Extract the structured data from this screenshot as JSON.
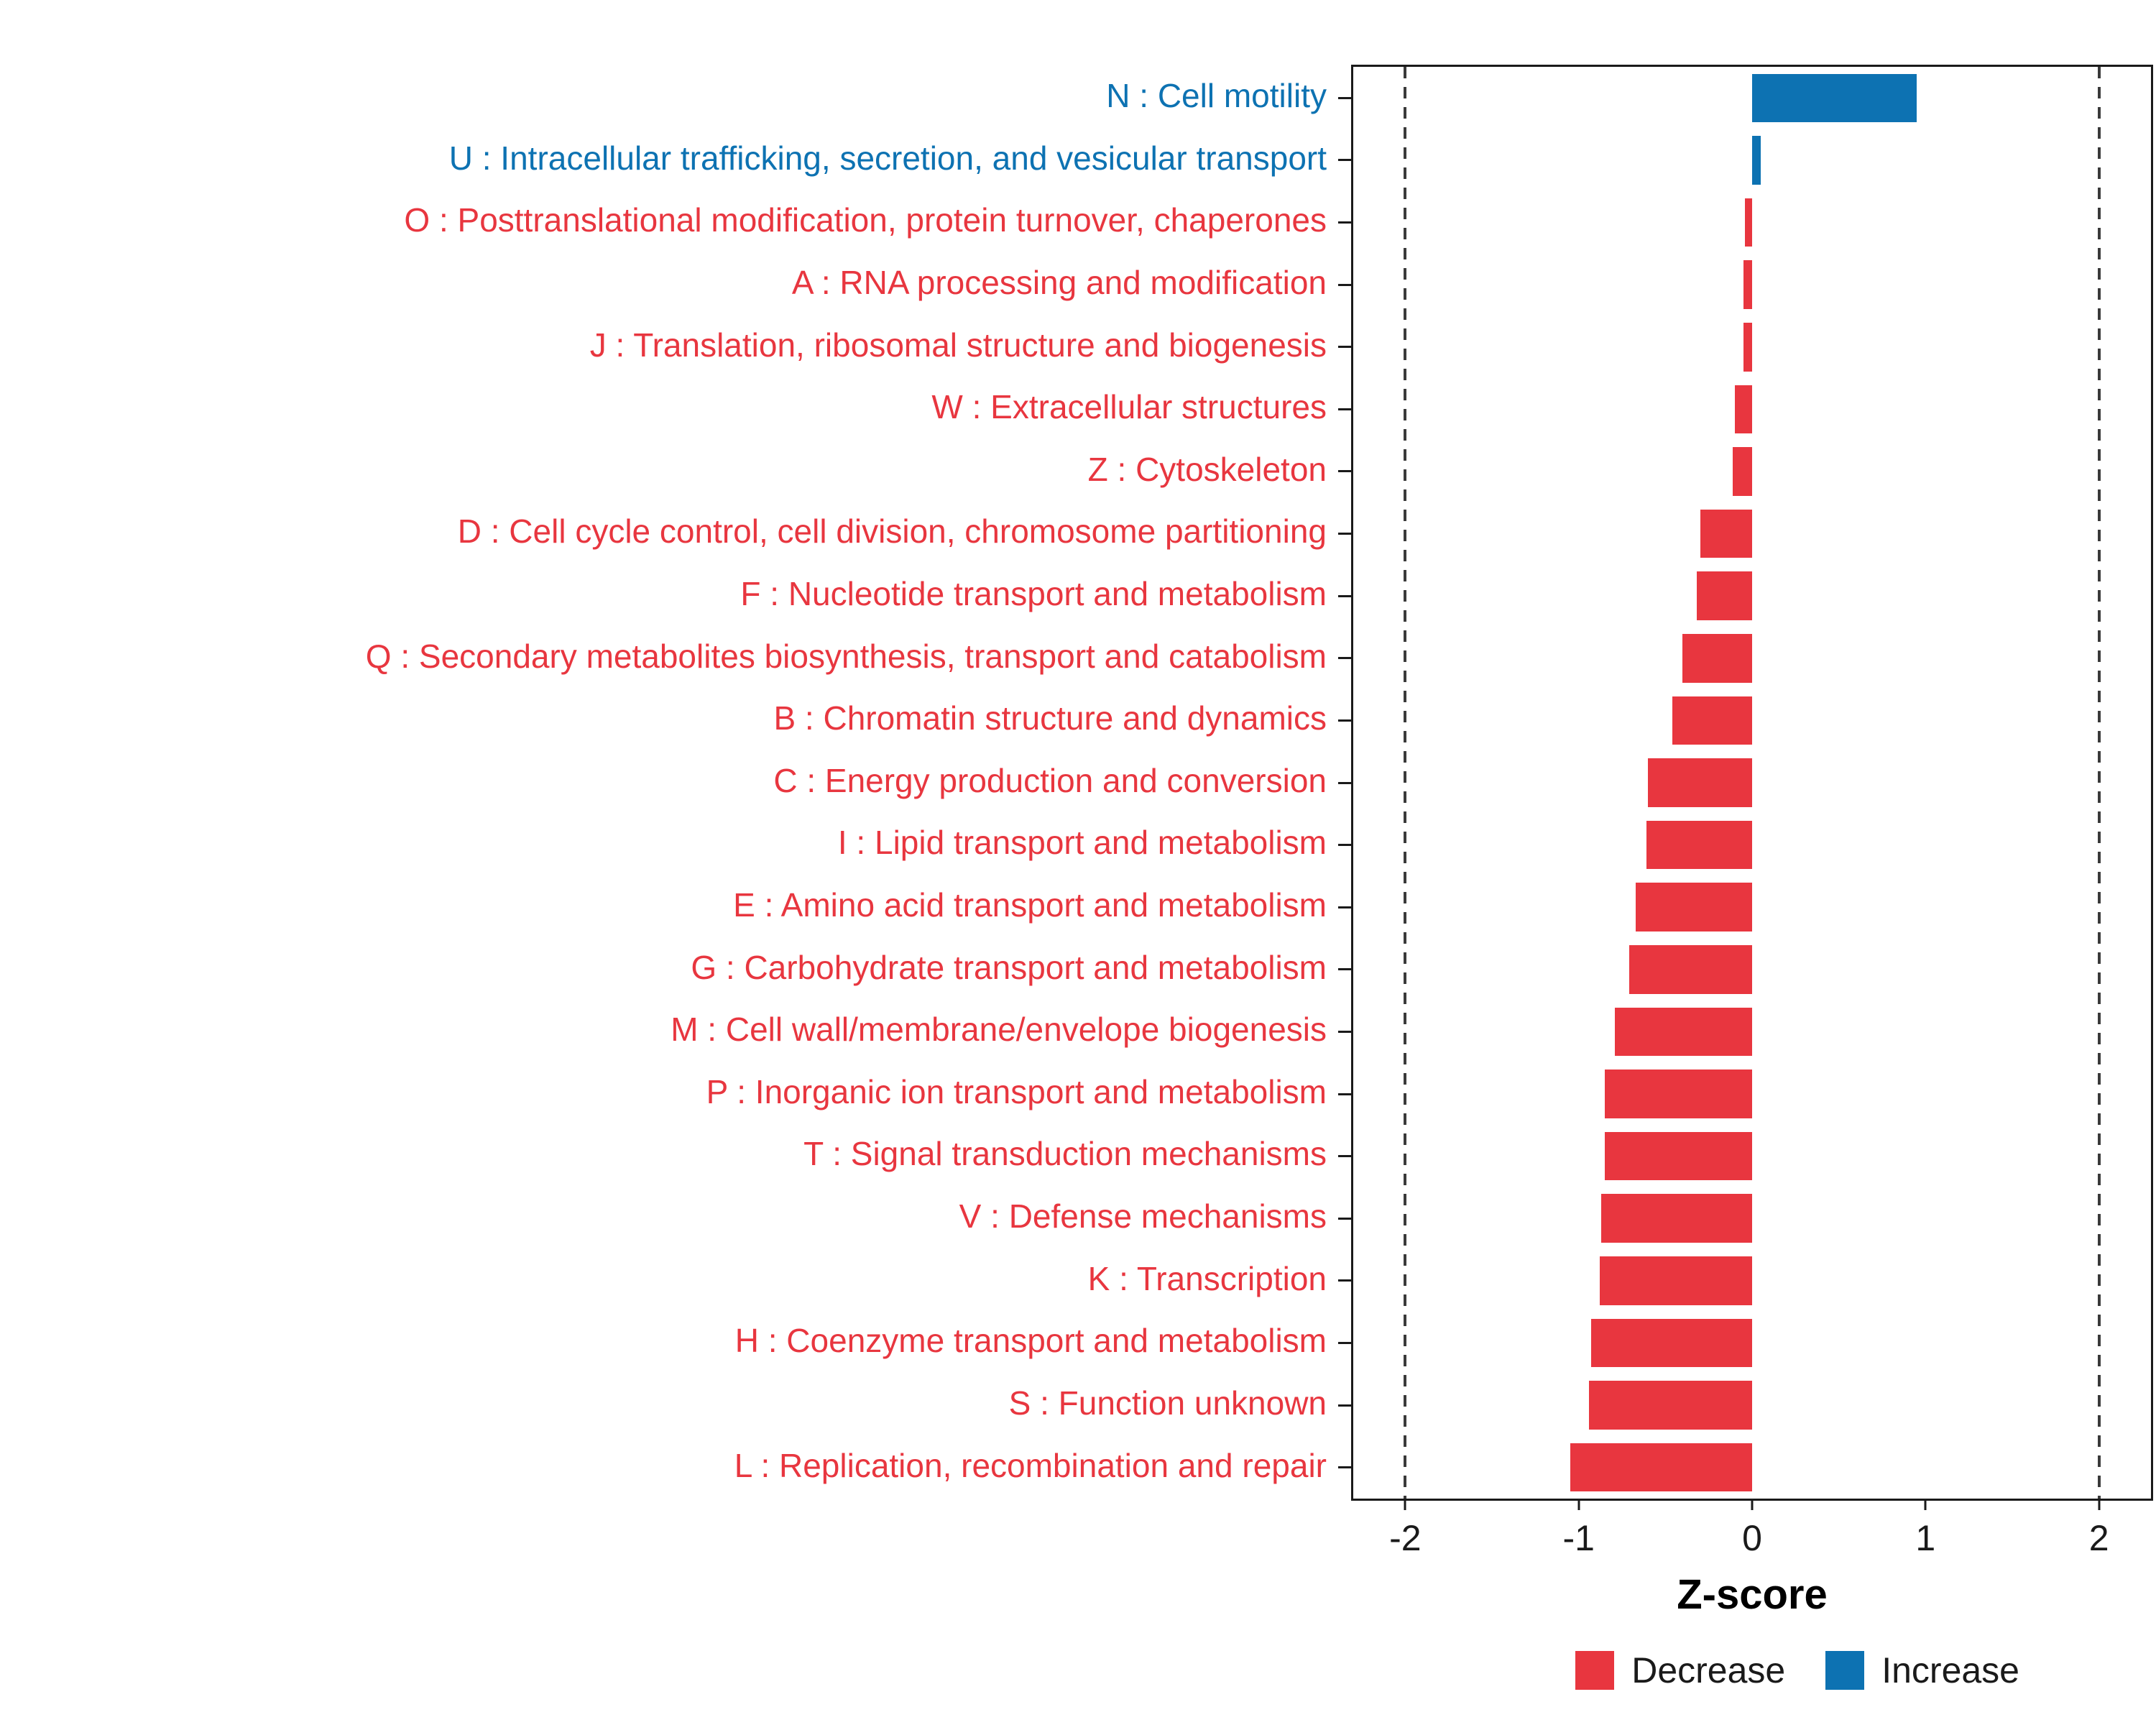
{
  "chart_data": {
    "type": "bar",
    "orientation": "horizontal",
    "title": "",
    "xlabel": "Z-score",
    "xlim": [
      -2.3,
      2.3
    ],
    "x_ticks": [
      -2,
      -1,
      0,
      1,
      2
    ],
    "reference_lines": [
      -2,
      2
    ],
    "grid": false,
    "legend_position": "bottom-right",
    "colors": {
      "Decrease": "#E8363F",
      "Increase": "#0D72B2"
    },
    "categories": [
      "N : Cell motility",
      "U : Intracellular trafficking, secretion, and vesicular transport",
      "O : Posttranslational modification, protein turnover, chaperones",
      "A : RNA processing and modification",
      "J : Translation, ribosomal structure and biogenesis",
      "W : Extracellular structures",
      "Z : Cytoskeleton",
      "D : Cell cycle control, cell division, chromosome partitioning",
      "F : Nucleotide transport and metabolism",
      "Q : Secondary metabolites biosynthesis, transport and catabolism",
      "B : Chromatin structure and dynamics",
      "C : Energy production and conversion",
      "I : Lipid transport and metabolism",
      "E : Amino acid transport and metabolism",
      "G : Carbohydrate transport and metabolism",
      "M : Cell wall/membrane/envelope biogenesis",
      "P : Inorganic ion transport and metabolism",
      "T : Signal transduction mechanisms",
      "V : Defense mechanisms",
      "K : Transcription",
      "H : Coenzyme transport and metabolism",
      "S : Function unknown",
      "L : Replication, recombination and repair"
    ],
    "values": [
      0.95,
      0.05,
      -0.04,
      -0.05,
      -0.05,
      -0.1,
      -0.11,
      -0.3,
      -0.32,
      -0.4,
      -0.46,
      -0.6,
      -0.61,
      -0.67,
      -0.71,
      -0.79,
      -0.85,
      -0.85,
      -0.87,
      -0.88,
      -0.93,
      -0.94,
      -1.05
    ],
    "groups": [
      "Increase",
      "Increase",
      "Decrease",
      "Decrease",
      "Decrease",
      "Decrease",
      "Decrease",
      "Decrease",
      "Decrease",
      "Decrease",
      "Decrease",
      "Decrease",
      "Decrease",
      "Decrease",
      "Decrease",
      "Decrease",
      "Decrease",
      "Decrease",
      "Decrease",
      "Decrease",
      "Decrease",
      "Decrease",
      "Decrease"
    ],
    "legend": [
      {
        "label": "Decrease",
        "color": "#E8363F"
      },
      {
        "label": "Increase",
        "color": "#0D72B2"
      }
    ]
  }
}
